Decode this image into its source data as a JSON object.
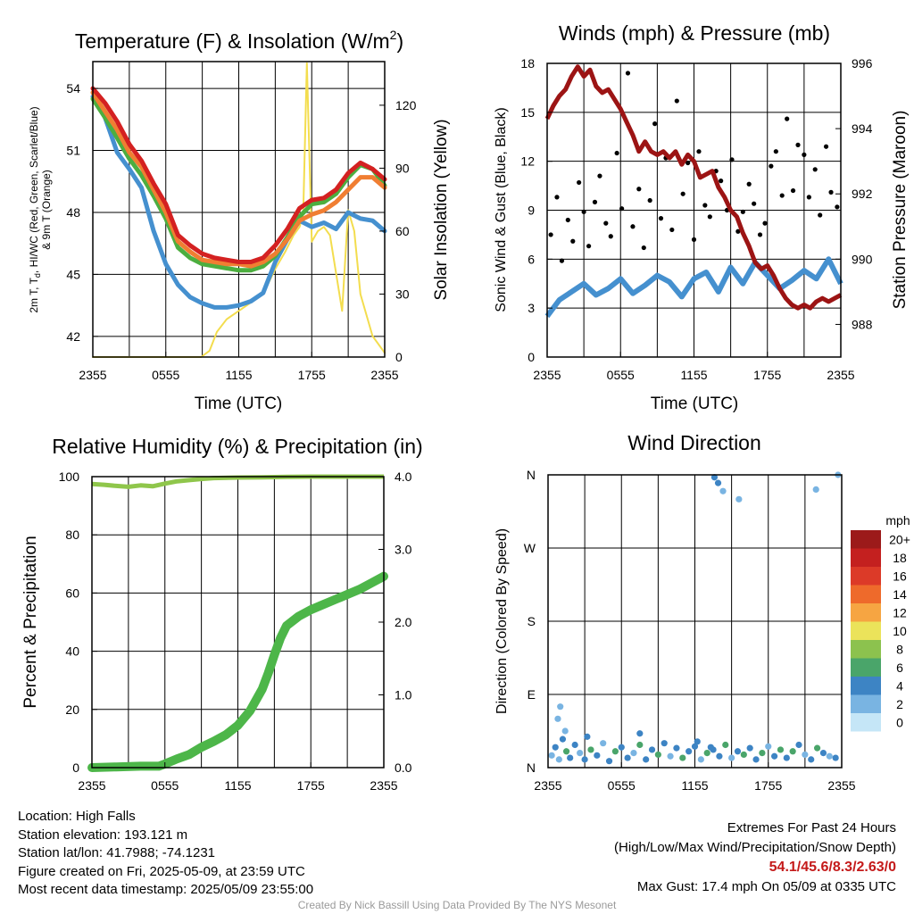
{
  "colors": {
    "red": "#d42121",
    "green": "#4cae3f",
    "scarlet": "#e8502a",
    "orange": "#f07e32",
    "blue": "#4590cf",
    "yellow": "#f3dd4e",
    "maroon": "#9c1414",
    "black": "#000000",
    "rh_green": "#8fc64b",
    "precip_green": "#4db649"
  },
  "chart_data": [
    {
      "type": "line",
      "title_main": "Temperature (F) & Insolation (W/m",
      "title_sup": "2",
      "title_end": ")",
      "xlabel": "Time (UTC)",
      "ylabel_line1": "2m T, T",
      "ylabel_sub": "d",
      "ylabel_rest": ", HI/WC (Red, Green, Scarlet/Blue)",
      "ylabel_line2": "& 9m T (Orange)",
      "ylabel_right": "Solar Insolation (Yellow)",
      "xticks": [
        "2355",
        "0555",
        "1155",
        "1755",
        "2355"
      ],
      "xlim": [
        0,
        24
      ],
      "ylim": [
        41,
        55.3
      ],
      "yticks": [
        42,
        45,
        48,
        51,
        54
      ],
      "ylim_right": [
        0,
        140.8
      ],
      "yticks_right": [
        0,
        30,
        60,
        90,
        120
      ],
      "grid": true,
      "series": [
        {
          "name": "2m T",
          "color": "red",
          "axis": "left",
          "x": [
            0,
            1,
            2,
            3,
            4,
            5,
            6,
            7,
            8,
            9,
            10,
            11,
            12,
            13,
            14,
            15,
            16,
            17,
            18,
            19,
            20,
            21,
            22,
            23,
            24
          ],
          "values": [
            54.0,
            53.3,
            52.4,
            51.3,
            50.5,
            49.4,
            48.4,
            46.9,
            46.4,
            46.0,
            45.8,
            45.7,
            45.6,
            45.6,
            45.8,
            46.4,
            47.2,
            48.2,
            48.6,
            48.7,
            49.1,
            49.9,
            50.4,
            50.1,
            49.6
          ]
        },
        {
          "name": "HI/WC",
          "color": "green",
          "axis": "left",
          "x": [
            0,
            1,
            2,
            3,
            4,
            5,
            6,
            7,
            8,
            9,
            10,
            11,
            12,
            13,
            14,
            15,
            16,
            17,
            18,
            19,
            20,
            21,
            22,
            23,
            24
          ],
          "values": [
            53.5,
            52.6,
            51.6,
            50.6,
            49.8,
            48.8,
            47.7,
            46.3,
            45.8,
            45.5,
            45.4,
            45.3,
            45.2,
            45.2,
            45.4,
            45.9,
            46.8,
            47.8,
            48.4,
            48.5,
            48.9,
            49.7,
            50.3,
            50.1,
            49.3
          ]
        },
        {
          "name": "9m T",
          "color": "orange",
          "axis": "left",
          "x": [
            0,
            1,
            2,
            3,
            4,
            5,
            6,
            7,
            8,
            9,
            10,
            11,
            12,
            13,
            14,
            15,
            16,
            17,
            18,
            19,
            20,
            21,
            22,
            23,
            24
          ],
          "values": [
            53.8,
            52.9,
            52.0,
            50.9,
            50.2,
            49.1,
            48.0,
            46.6,
            46.1,
            45.7,
            45.6,
            45.5,
            45.5,
            45.4,
            45.6,
            46.0,
            46.7,
            47.6,
            47.9,
            48.1,
            48.5,
            49.1,
            49.7,
            49.7,
            49.2
          ]
        },
        {
          "name": "Td",
          "color": "blue",
          "axis": "left",
          "x": [
            0,
            1,
            2,
            3,
            4,
            5,
            6,
            7,
            8,
            9,
            10,
            11,
            12,
            13,
            14,
            15,
            16,
            17,
            18,
            19,
            20,
            21,
            22,
            23,
            24
          ],
          "values": [
            53.6,
            52.6,
            50.9,
            50.1,
            49.2,
            47.1,
            45.5,
            44.5,
            43.9,
            43.6,
            43.4,
            43.4,
            43.5,
            43.7,
            44.1,
            45.6,
            46.7,
            47.6,
            47.3,
            47.5,
            47.2,
            48.0,
            47.7,
            47.6,
            47.1
          ]
        },
        {
          "name": "Solar",
          "color": "yellow",
          "axis": "right",
          "x": [
            0,
            6,
            8.9,
            9.6,
            10.2,
            11,
            12,
            13,
            14,
            15,
            15.8,
            16.5,
            17,
            17.3,
            17.6,
            18,
            18.5,
            19,
            19.5,
            20,
            20.5,
            21,
            21.5,
            22,
            23,
            24
          ],
          "values": [
            0,
            0,
            0,
            3,
            12,
            18,
            22,
            26,
            30,
            42,
            50,
            58,
            62,
            68,
            140,
            55,
            60,
            62,
            58,
            40,
            22,
            70,
            60,
            30,
            10,
            2
          ]
        }
      ]
    },
    {
      "type": "scatter",
      "title": "Winds (mph) & Pressure (mb)",
      "xlabel": "Time (UTC)",
      "ylabel": "Sonic Wind & Gust (Blue, Black)",
      "ylabel_right": "Station Pressure (Maroon)",
      "xticks": [
        "2355",
        "0555",
        "1155",
        "1755",
        "2355"
      ],
      "xlim": [
        0,
        24
      ],
      "ylim": [
        0,
        18
      ],
      "yticks": [
        0,
        3,
        6,
        9,
        12,
        15,
        18
      ],
      "ylim_right": [
        987,
        996
      ],
      "yticks_right": [
        988,
        990,
        992,
        994,
        996
      ],
      "grid": true,
      "series": [
        {
          "name": "Sonic Wind",
          "color": "blue",
          "axis": "left",
          "x": [
            0,
            1,
            2,
            3,
            4,
            5,
            6,
            7,
            8,
            9,
            10,
            11,
            12,
            13,
            14,
            15,
            16,
            17,
            18,
            19,
            20,
            21,
            22,
            23,
            24
          ],
          "values": [
            2.5,
            3.5,
            4.0,
            4.5,
            3.8,
            4.2,
            4.8,
            3.9,
            4.4,
            5.0,
            4.6,
            3.7,
            4.8,
            5.2,
            4.0,
            5.5,
            4.5,
            5.8,
            5.0,
            4.2,
            4.7,
            5.3,
            4.8,
            6.0,
            4.5
          ]
        },
        {
          "name": "Gust",
          "color": "black",
          "axis": "left",
          "x": [
            0.3,
            0.8,
            1.2,
            1.7,
            2.1,
            2.6,
            3.0,
            3.4,
            3.9,
            4.3,
            4.8,
            5.2,
            5.7,
            6.1,
            6.6,
            7.0,
            7.5,
            7.9,
            8.4,
            8.8,
            9.3,
            9.7,
            10.2,
            10.6,
            11.1,
            11.5,
            12.0,
            12.4,
            12.9,
            13.3,
            13.8,
            14.2,
            14.7,
            15.1,
            15.6,
            16.0,
            16.5,
            16.9,
            17.4,
            17.8,
            18.3,
            18.7,
            19.2,
            19.6,
            20.1,
            20.5,
            21.0,
            21.4,
            21.9,
            22.3,
            22.8,
            23.2,
            23.7
          ],
          "values": [
            7.5,
            9.8,
            5.9,
            8.4,
            7.1,
            10.7,
            8.9,
            6.8,
            9.5,
            11.1,
            8.2,
            7.4,
            12.5,
            9.1,
            17.4,
            8.0,
            10.3,
            6.7,
            9.6,
            14.3,
            8.5,
            12.2,
            7.8,
            15.7,
            10.0,
            11.9,
            7.2,
            12.6,
            9.3,
            8.6,
            11.4,
            10.8,
            9.0,
            12.1,
            7.7,
            8.9,
            10.6,
            9.4,
            7.5,
            8.2,
            11.7,
            12.6,
            9.9,
            14.6,
            10.2,
            13.0,
            12.4,
            9.8,
            11.5,
            8.7,
            12.9,
            10.1,
            9.2
          ]
        },
        {
          "name": "Pressure",
          "color": "maroon",
          "axis": "right",
          "x": [
            0,
            0.5,
            1,
            1.5,
            2,
            2.5,
            3,
            3.5,
            4,
            4.5,
            5,
            5.5,
            6,
            6.5,
            7,
            7.5,
            8,
            8.5,
            9,
            9.5,
            10,
            10.5,
            11,
            11.5,
            12,
            12.5,
            13,
            13.5,
            14,
            14.5,
            15,
            15.5,
            16,
            16.5,
            17,
            17.5,
            18,
            18.5,
            19,
            19.5,
            20,
            20.5,
            21,
            21.5,
            22,
            22.5,
            23,
            23.5,
            24
          ],
          "values": [
            994.3,
            994.7,
            995.0,
            995.2,
            995.6,
            995.9,
            995.6,
            995.8,
            995.3,
            995.1,
            995.2,
            994.9,
            994.6,
            994.2,
            993.8,
            993.3,
            993.6,
            993.3,
            993.2,
            993.3,
            993.1,
            993.3,
            992.9,
            993.2,
            993.0,
            992.5,
            992.6,
            992.7,
            992.2,
            991.9,
            991.5,
            991.3,
            990.8,
            990.4,
            989.9,
            989.7,
            989.8,
            989.5,
            989.1,
            988.8,
            988.6,
            988.5,
            988.6,
            988.5,
            988.7,
            988.8,
            988.7,
            988.8,
            988.9
          ]
        }
      ]
    },
    {
      "type": "scatter",
      "title": "Relative Humidity (%) & Precipitation (in)",
      "xlabel": "",
      "ylabel": "Percent & Precipitation",
      "xticks": [
        "2355",
        "0555",
        "1155",
        "1755",
        "2355"
      ],
      "xlim": [
        0,
        24
      ],
      "ylim": [
        0,
        100
      ],
      "yticks": [
        0,
        20,
        40,
        60,
        80,
        100
      ],
      "ylim_right": [
        0,
        4.0
      ],
      "yticks_right": [
        "0.0",
        "1.0",
        "2.0",
        "3.0",
        "4.0"
      ],
      "grid": true,
      "series": [
        {
          "name": "RH",
          "color": "rh_green",
          "axis": "left",
          "x": [
            0,
            1,
            2,
            3,
            4,
            5,
            6,
            7,
            8,
            9,
            10,
            12,
            14,
            16,
            18,
            20,
            22,
            24
          ],
          "values": [
            97.5,
            97.2,
            96.8,
            96.5,
            97.0,
            96.7,
            97.6,
            98.4,
            98.8,
            99.2,
            99.5,
            99.7,
            99.8,
            99.9,
            100,
            100,
            100,
            100
          ]
        },
        {
          "name": "Precip",
          "color": "precip_green",
          "axis": "right",
          "x": [
            0,
            2,
            4,
            5.5,
            6,
            7,
            8,
            9,
            10,
            11,
            12,
            13,
            14,
            14.5,
            15,
            15.5,
            16,
            17,
            18,
            19,
            20,
            21,
            22,
            23,
            24
          ],
          "values": [
            0,
            0.01,
            0.02,
            0.02,
            0.05,
            0.12,
            0.18,
            0.28,
            0.36,
            0.45,
            0.58,
            0.78,
            1.08,
            1.3,
            1.55,
            1.78,
            1.95,
            2.08,
            2.17,
            2.24,
            2.31,
            2.38,
            2.45,
            2.54,
            2.63
          ]
        }
      ]
    },
    {
      "type": "scatter",
      "title": "Wind Direction",
      "ylabel": "Direction (Colored By Speed)",
      "xticks": [
        "2355",
        "0555",
        "1155",
        "1755",
        "2355"
      ],
      "xlim": [
        0,
        24
      ],
      "ylim": [
        0,
        360
      ],
      "yticks": [
        "N",
        "E",
        "S",
        "W",
        "N"
      ],
      "legend_title": "mph",
      "legend_labels": [
        "20+",
        "18",
        "16",
        "14",
        "12",
        "10",
        "8",
        "6",
        "4",
        "2",
        "0"
      ],
      "legend_colors": [
        "#9c1a1a",
        "#c4201f",
        "#dc3a28",
        "#ee6a2b",
        "#f6a542",
        "#ebe35a",
        "#8cc24e",
        "#4aa56a",
        "#3d84c4",
        "#79b4e2",
        "#c5e6f7"
      ],
      "points": {
        "x": [
          0.3,
          0.6,
          0.9,
          1.2,
          1.5,
          1.8,
          2.2,
          2.6,
          3.0,
          3.5,
          4.0,
          4.5,
          5.0,
          5.5,
          6.0,
          6.5,
          7.0,
          7.5,
          8.0,
          8.5,
          9.0,
          9.5,
          10.0,
          10.5,
          11.0,
          11.5,
          12.0,
          12.5,
          13.0,
          13.5,
          14.0,
          14.5,
          15.0,
          15.5,
          16.0,
          16.5,
          17.0,
          17.5,
          18.0,
          18.5,
          19.0,
          19.5,
          20.0,
          20.5,
          21.0,
          21.5,
          22.0,
          22.5,
          23.0,
          23.5,
          0.8,
          1.0,
          1.4,
          3.2,
          7.5,
          12.2,
          13.3,
          13.6,
          13.9,
          14.3,
          15.6,
          21.9,
          23.7
        ],
        "values": [
          15,
          25,
          10,
          35,
          20,
          12,
          28,
          18,
          10,
          22,
          15,
          30,
          8,
          20,
          25,
          12,
          18,
          28,
          10,
          22,
          16,
          30,
          14,
          24,
          12,
          20,
          26,
          10,
          18,
          22,
          14,
          28,
          12,
          20,
          16,
          24,
          10,
          18,
          26,
          14,
          22,
          12,
          20,
          28,
          16,
          10,
          24,
          18,
          14,
          12,
          60,
          75,
          45,
          38,
          42,
          32,
          25,
          357,
          350,
          340,
          330,
          342,
          360
        ],
        "colors": [
          "#79b4e2",
          "#3d84c4",
          "#79b4e2",
          "#3d84c4",
          "#4aa56a",
          "#3d84c4",
          "#3d84c4",
          "#79b4e2",
          "#3d84c4",
          "#4aa56a",
          "#3d84c4",
          "#79b4e2",
          "#3d84c4",
          "#4aa56a",
          "#3d84c4",
          "#3d84c4",
          "#79b4e2",
          "#4aa56a",
          "#3d84c4",
          "#3d84c4",
          "#4aa56a",
          "#3d84c4",
          "#79b4e2",
          "#3d84c4",
          "#4aa56a",
          "#3d84c4",
          "#3d84c4",
          "#79b4e2",
          "#4aa56a",
          "#3d84c4",
          "#3d84c4",
          "#4aa56a",
          "#79b4e2",
          "#3d84c4",
          "#4aa56a",
          "#3d84c4",
          "#3d84c4",
          "#4aa56a",
          "#79b4e2",
          "#3d84c4",
          "#4aa56a",
          "#3d84c4",
          "#4aa56a",
          "#3d84c4",
          "#79b4e2",
          "#3d84c4",
          "#4aa56a",
          "#3d84c4",
          "#79b4e2",
          "#3d84c4",
          "#79b4e2",
          "#79b4e2",
          "#79b4e2",
          "#3d84c4",
          "#3d84c4",
          "#3d84c4",
          "#3d84c4",
          "#3d84c4",
          "#3d84c4",
          "#79b4e2",
          "#79b4e2",
          "#79b4e2",
          "#79b4e2"
        ]
      }
    }
  ],
  "footer": {
    "location": "Location: High Falls",
    "elevation": "Station elevation: 193.121 m",
    "latlon": "Station lat/lon: 41.7988; -74.1231",
    "created": "Figure created on Fri, 2025-05-09, at 23:59 UTC",
    "recent": "Most recent data timestamp: 2025/05/09 23:55:00",
    "extremes_title": "Extremes For Past 24 Hours",
    "extremes_sub": "(High/Low/Max Wind/Precipitation/Snow Depth)",
    "extremes_values": "54.1/45.6/8.3/2.63/0",
    "max_gust": "Max Gust: 17.4 mph On 05/09 at 0335 UTC",
    "credit": "Created By Nick Bassill Using Data Provided By The NYS Mesonet"
  }
}
